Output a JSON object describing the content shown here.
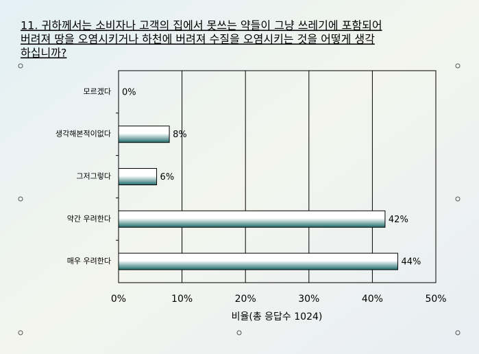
{
  "chart_data": {
    "type": "barh",
    "title": [
      "11. 귀하께서는 소비자나 고객의 집에서 못쓰는 약들이 그냥 쓰레기에 포함되어",
      "버려져 땅을 오염시키거나 하천에 버려져 수질을 오염시키는 것을 어떻게 생각",
      "하십니까?"
    ],
    "categories": [
      "모르겠다",
      "생각해본적이없다",
      "그저그렇다",
      "약간 우려한다",
      "매우 우려한다"
    ],
    "values": [
      0,
      8,
      6,
      42,
      44
    ],
    "value_labels": [
      "0%",
      "8%",
      "6%",
      "42%",
      "44%"
    ],
    "color": "#1f6b6b",
    "xlim": [
      0,
      50
    ],
    "xticks": [
      {
        "value": 0,
        "label": "0%"
      },
      {
        "value": 10,
        "label": "10%"
      },
      {
        "value": 20,
        "label": "20%"
      },
      {
        "value": 30,
        "label": "30%"
      },
      {
        "value": 40,
        "label": "40%"
      },
      {
        "value": 50,
        "label": "50%"
      }
    ],
    "xlabel": "비율(총 응답수 1024)",
    "grid": true
  }
}
